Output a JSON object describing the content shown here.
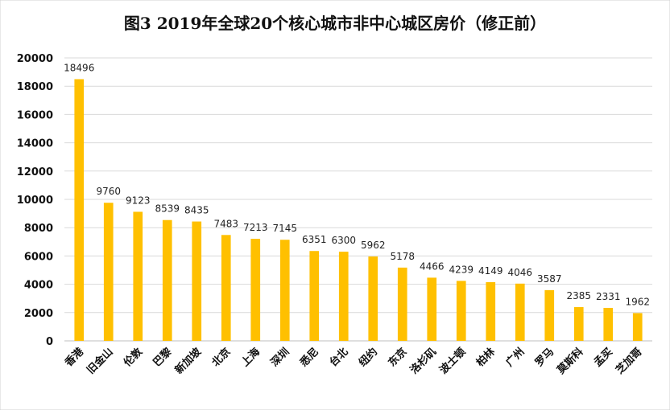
{
  "chart_data": {
    "type": "bar",
    "title": "图3   2019年全球20个核心城市非中心城区房价（修正前）",
    "xlabel": "",
    "ylabel": "",
    "ylim": [
      0,
      20000
    ],
    "yticks": [
      0,
      2000,
      4000,
      6000,
      8000,
      10000,
      12000,
      14000,
      16000,
      18000,
      20000
    ],
    "grid": true,
    "bar_color": "#FFC000",
    "categories": [
      "香港",
      "旧金山",
      "伦敦",
      "巴黎",
      "新加坡",
      "北京",
      "上海",
      "深圳",
      "悉尼",
      "台北",
      "纽约",
      "东京",
      "洛杉矶",
      "波士顿",
      "柏林",
      "广州",
      "罗马",
      "莫斯科",
      "孟买",
      "芝加哥"
    ],
    "values": [
      18496,
      9760,
      9123,
      8539,
      8435,
      7483,
      7213,
      7145,
      6351,
      6300,
      5962,
      5178,
      4466,
      4239,
      4149,
      4046,
      3587,
      2385,
      2331,
      1962
    ],
    "data_labels": [
      "18496",
      "9760",
      "9123",
      "8539",
      "8435",
      "7483",
      "7213",
      "7145",
      "6351",
      "6300",
      "5962",
      "5178",
      "4466",
      "4239",
      "4149",
      "4046",
      "3587",
      "2385",
      "2331",
      "1962"
    ]
  }
}
